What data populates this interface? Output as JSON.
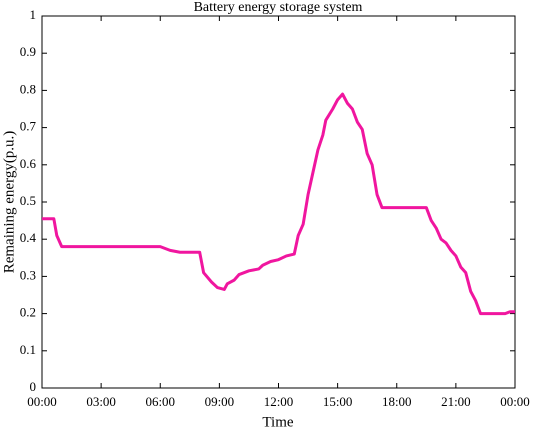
{
  "chart_data": {
    "type": "line",
    "title": "Battery energy storage system",
    "x_label": "Time",
    "y_label": "Remaining energy(p.u.)",
    "x": [
      0,
      0.6,
      0.75,
      1.0,
      6.0,
      6.5,
      7.0,
      8.0,
      8.2,
      8.6,
      8.9,
      9.25,
      9.4,
      9.75,
      10.0,
      10.5,
      11.0,
      11.2,
      11.6,
      12.0,
      12.4,
      12.8,
      13.0,
      13.25,
      13.5,
      13.75,
      14.0,
      14.25,
      14.4,
      14.75,
      15.0,
      15.25,
      15.5,
      15.75,
      16.0,
      16.25,
      16.5,
      16.75,
      17.0,
      17.25,
      18.0,
      19.5,
      19.75,
      20.0,
      20.25,
      20.5,
      20.75,
      21.0,
      21.25,
      21.5,
      21.75,
      22.0,
      22.25,
      23.5,
      23.75,
      24.0
    ],
    "series": [
      {
        "name": "Remaining energy",
        "color": "#f0169f",
        "values": [
          0.455,
          0.455,
          0.41,
          0.38,
          0.38,
          0.37,
          0.365,
          0.365,
          0.31,
          0.285,
          0.27,
          0.265,
          0.28,
          0.29,
          0.305,
          0.315,
          0.32,
          0.33,
          0.34,
          0.345,
          0.355,
          0.36,
          0.41,
          0.44,
          0.52,
          0.58,
          0.64,
          0.68,
          0.72,
          0.75,
          0.775,
          0.79,
          0.765,
          0.75,
          0.715,
          0.695,
          0.63,
          0.6,
          0.52,
          0.485,
          0.485,
          0.485,
          0.45,
          0.43,
          0.4,
          0.39,
          0.37,
          0.355,
          0.325,
          0.31,
          0.26,
          0.235,
          0.2,
          0.2,
          0.205,
          0.205
        ]
      }
    ],
    "xlim": [
      0,
      24
    ],
    "xticks": [
      {
        "value": 0,
        "label": "00:00"
      },
      {
        "value": 3,
        "label": "03:00"
      },
      {
        "value": 6,
        "label": "06:00"
      },
      {
        "value": 9,
        "label": "09:00"
      },
      {
        "value": 12,
        "label": "12:00"
      },
      {
        "value": 15,
        "label": "15:00"
      },
      {
        "value": 18,
        "label": "18:00"
      },
      {
        "value": 21,
        "label": "21:00"
      },
      {
        "value": 24,
        "label": "00:00"
      }
    ],
    "ylim": [
      0,
      1
    ],
    "yticks": [
      0,
      0.1,
      0.2,
      0.3,
      0.4,
      0.5,
      0.6,
      0.7,
      0.8,
      0.9,
      1
    ],
    "grid": false
  }
}
